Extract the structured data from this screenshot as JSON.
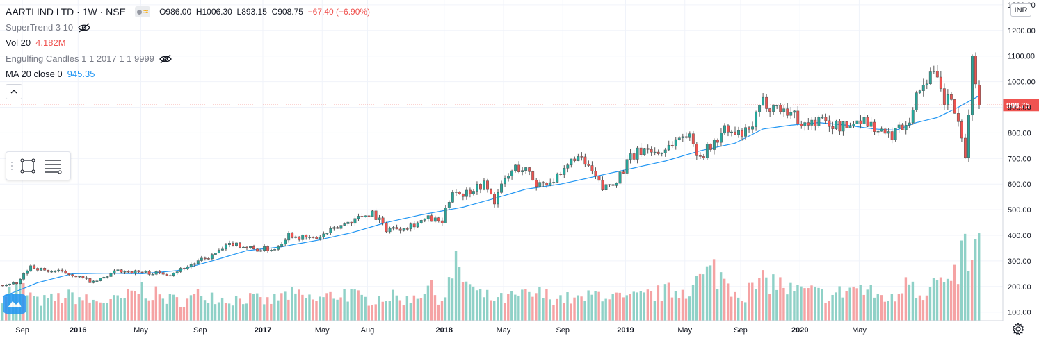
{
  "header": {
    "symbol": "AARTI IND LTD · 1W · NSE",
    "open": "O986.00",
    "high": "H1006.30",
    "low": "L893.15",
    "close": "C908.75",
    "change": "−67.40 (−6.90%)"
  },
  "indicators": {
    "supertrend": "SuperTrend 3 10",
    "volume_label": "Vol 20",
    "volume_value": "4.182M",
    "engulfing": "Engulfing Candles 1 1 2017 1 1 9999",
    "ma_label": "MA 20 close 0",
    "ma_value": "945.35"
  },
  "currency": "INR",
  "icons": {
    "eye": "eye-off-icon",
    "collapse": "chevron-up-icon",
    "rect_tool": "rectangle-tool-icon",
    "lines_tool": "lines-tool-icon",
    "settings": "gear-icon",
    "logo": "tradingview-logo-icon"
  },
  "colors": {
    "up": "#26a69a",
    "down": "#ef5350",
    "vol_up": "#8fd1c7",
    "vol_down": "#f5a3a4",
    "ma": "#2196f3",
    "last_price": "#ef5350"
  },
  "chart_data": {
    "type": "candlestick",
    "interval": "1W",
    "price_axis": {
      "ticks": [
        "1300.00",
        "1200.00",
        "1100.00",
        "1000.00",
        "900.00",
        "800.00",
        "700.00",
        "600.00",
        "500.00",
        "400.00",
        "300.00",
        "200.00",
        "100.00"
      ],
      "range": [
        85,
        1300
      ]
    },
    "last_price": 908.75,
    "last_price_label": "908.75",
    "time_axis": {
      "labels": [
        "Sep",
        "2016",
        "May",
        "Sep",
        "2017",
        "May",
        "Aug",
        "2018",
        "May",
        "Sep",
        "2019",
        "May",
        "Sep",
        "2020",
        "May"
      ],
      "bold": [
        "2016",
        "2017",
        "2018",
        "2019",
        "2020"
      ]
    },
    "price_series": {
      "week": [
        0,
        4,
        8,
        12,
        16,
        20,
        26,
        33,
        40,
        48,
        54,
        60,
        66,
        72,
        78,
        82,
        86,
        90,
        94,
        98,
        102,
        106,
        110,
        114,
        118,
        122,
        126,
        129,
        132,
        135,
        138,
        141,
        144,
        147,
        150,
        153,
        156,
        160,
        164,
        168,
        172,
        176,
        180,
        184,
        188,
        192,
        196,
        200,
        204,
        207,
        210,
        214,
        218,
        222,
        226,
        230,
        234,
        238,
        242,
        246,
        250,
        254,
        258,
        260,
        262,
        264,
        266,
        268,
        270,
        272,
        274,
        276,
        278,
        280
      ],
      "price": [
        205,
        210,
        280,
        262,
        258,
        247,
        215,
        262,
        255,
        250,
        285,
        320,
        370,
        345,
        347,
        405,
        390,
        388,
        415,
        445,
        470,
        490,
        425,
        430,
        445,
        465,
        450,
        580,
        560,
        585,
        600,
        535,
        615,
        665,
        655,
        600,
        610,
        625,
        710,
        665,
        580,
        620,
        700,
        740,
        720,
        760,
        800,
        710,
        760,
        810,
        790,
        800,
        920,
        900,
        880,
        830,
        850,
        830,
        820,
        860,
        820,
        785,
        830,
        860,
        940,
        1000,
        1030,
        1000,
        920,
        940,
        820,
        700,
        1080,
        909
      ]
    },
    "volume_series": {
      "week": [
        0,
        5,
        10,
        16,
        20,
        26,
        34,
        40,
        46,
        52,
        58,
        64,
        70,
        76,
        82,
        90,
        98,
        104,
        110,
        116,
        122,
        126,
        130,
        136,
        142,
        148,
        154,
        160,
        166,
        172,
        178,
        184,
        190,
        196,
        201,
        204,
        208,
        212,
        216,
        220,
        226,
        232,
        238,
        244,
        250,
        256,
        260,
        262,
        265,
        268,
        272,
        276,
        278,
        280
      ],
      "value_m": [
        1.2,
        1.6,
        0.8,
        1.0,
        1.1,
        0.8,
        0.9,
        1.5,
        1.0,
        0.8,
        1.3,
        0.9,
        1.0,
        0.8,
        1.2,
        0.9,
        1.3,
        0.9,
        1.1,
        0.9,
        1.6,
        0.9,
        2.6,
        1.2,
        0.9,
        1.1,
        1.2,
        1.0,
        0.9,
        1.3,
        0.9,
        1.1,
        1.3,
        1.5,
        2.1,
        2.5,
        1.8,
        1.2,
        1.6,
        2.0,
        1.4,
        1.3,
        1.1,
        1.6,
        1.2,
        0.9,
        2.6,
        1.5,
        1.2,
        2.0,
        1.4,
        3.8,
        2.5,
        4.18
      ]
    },
    "ma_series": {
      "week": [
        0,
        10,
        20,
        30,
        40,
        50,
        60,
        70,
        80,
        90,
        100,
        110,
        120,
        126,
        132,
        140,
        150,
        160,
        170,
        180,
        190,
        200,
        210,
        218,
        226,
        234,
        242,
        250,
        256,
        262,
        268,
        274,
        280
      ],
      "value": [
        160,
        215,
        250,
        252,
        250,
        262,
        300,
        340,
        355,
        380,
        410,
        450,
        480,
        495,
        510,
        540,
        580,
        600,
        630,
        660,
        690,
        730,
        760,
        815,
        830,
        840,
        830,
        815,
        810,
        840,
        860,
        900,
        945
      ]
    }
  }
}
